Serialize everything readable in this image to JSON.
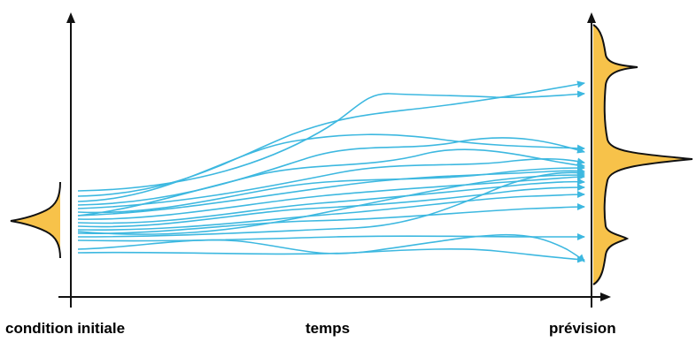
{
  "labels": {
    "initial": "condition initiale",
    "time": "temps",
    "forecast": "prévision"
  },
  "colors": {
    "trajectory": "#3db8e0",
    "distribution_fill": "#f7c24a",
    "axis": "#111111"
  }
}
